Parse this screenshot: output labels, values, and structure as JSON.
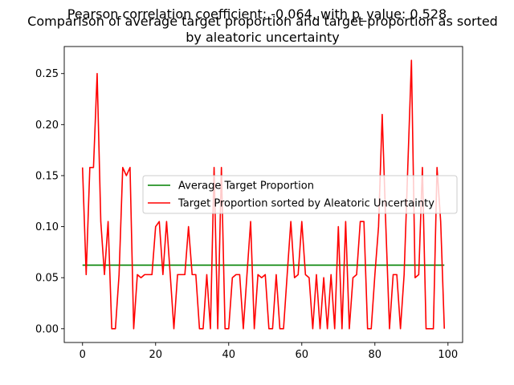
{
  "chart_data": {
    "type": "line",
    "suptitle": "Pearson correlation coefficient: -0.064, with p_value: 0.528",
    "title_line1": "Comparison of average target proportion and target proportion as sorted",
    "title_line2": "by aleatoric uncertainty",
    "xlabel": "",
    "ylabel": "",
    "xlim": [
      -5,
      104
    ],
    "ylim": [
      -0.0135,
      0.2765
    ],
    "xticks": [
      0,
      20,
      40,
      60,
      80,
      100
    ],
    "xtick_labels": [
      "0",
      "20",
      "40",
      "60",
      "80",
      "100"
    ],
    "yticks": [
      0.0,
      0.05,
      0.1,
      0.15,
      0.2,
      0.25
    ],
    "ytick_labels": [
      "0.00",
      "0.05",
      "0.10",
      "0.15",
      "0.20",
      "0.25"
    ],
    "grid": false,
    "legend_position": "center-right",
    "x": [
      0,
      1,
      2,
      3,
      4,
      5,
      6,
      7,
      8,
      9,
      10,
      11,
      12,
      13,
      14,
      15,
      16,
      17,
      18,
      19,
      20,
      21,
      22,
      23,
      24,
      25,
      26,
      27,
      28,
      29,
      30,
      31,
      32,
      33,
      34,
      35,
      36,
      37,
      38,
      39,
      40,
      41,
      42,
      43,
      44,
      45,
      46,
      47,
      48,
      49,
      50,
      51,
      52,
      53,
      54,
      55,
      56,
      57,
      58,
      59,
      60,
      61,
      62,
      63,
      64,
      65,
      66,
      67,
      68,
      69,
      70,
      71,
      72,
      73,
      74,
      75,
      76,
      77,
      78,
      79,
      80,
      81,
      82,
      83,
      84,
      85,
      86,
      87,
      88,
      89,
      90,
      91,
      92,
      93,
      94,
      95,
      96,
      97,
      98,
      99
    ],
    "series": [
      {
        "name": "Average Target Proportion",
        "color": "#008000",
        "values": [
          0.0623,
          0.0623,
          0.0623,
          0.0623,
          0.0623,
          0.0623,
          0.0623,
          0.0623,
          0.0623,
          0.0623,
          0.0623,
          0.0623,
          0.0623,
          0.0623,
          0.0623,
          0.0623,
          0.0623,
          0.0623,
          0.0623,
          0.0623,
          0.0623,
          0.0623,
          0.0623,
          0.0623,
          0.0623,
          0.0623,
          0.0623,
          0.0623,
          0.0623,
          0.0623,
          0.0623,
          0.0623,
          0.0623,
          0.0623,
          0.0623,
          0.0623,
          0.0623,
          0.0623,
          0.0623,
          0.0623,
          0.0623,
          0.0623,
          0.0623,
          0.0623,
          0.0623,
          0.0623,
          0.0623,
          0.0623,
          0.0623,
          0.0623,
          0.0623,
          0.0623,
          0.0623,
          0.0623,
          0.0623,
          0.0623,
          0.0623,
          0.0623,
          0.0623,
          0.0623,
          0.0623,
          0.0623,
          0.0623,
          0.0623,
          0.0623,
          0.0623,
          0.0623,
          0.0623,
          0.0623,
          0.0623,
          0.0623,
          0.0623,
          0.0623,
          0.0623,
          0.0623,
          0.0623,
          0.0623,
          0.0623,
          0.0623,
          0.0623,
          0.0623,
          0.0623,
          0.0623,
          0.0623,
          0.0623,
          0.0623,
          0.0623,
          0.0623,
          0.0623,
          0.0623,
          0.0623,
          0.0623,
          0.0623,
          0.0623,
          0.0623,
          0.0623,
          0.0623,
          0.0623,
          0.0623,
          0.0623
        ]
      },
      {
        "name": "Target Proportion sorted by Aleatoric Uncertainty",
        "color": "#ff0000",
        "values": [
          0.158,
          0.053,
          0.158,
          0.158,
          0.25,
          0.105,
          0.053,
          0.105,
          0.0,
          0.0,
          0.053,
          0.158,
          0.15,
          0.158,
          0.0,
          0.053,
          0.05,
          0.053,
          0.053,
          0.053,
          0.1,
          0.105,
          0.053,
          0.105,
          0.053,
          0.0,
          0.053,
          0.053,
          0.053,
          0.1,
          0.053,
          0.053,
          0.0,
          0.0,
          0.053,
          0.0,
          0.158,
          0.0,
          0.158,
          0.0,
          0.0,
          0.05,
          0.053,
          0.053,
          0.0,
          0.053,
          0.105,
          0.0,
          0.053,
          0.05,
          0.053,
          0.0,
          0.0,
          0.053,
          0.0,
          0.0,
          0.053,
          0.105,
          0.05,
          0.053,
          0.105,
          0.053,
          0.05,
          0.0,
          0.053,
          0.0,
          0.05,
          0.0,
          0.053,
          0.0,
          0.1,
          0.0,
          0.105,
          0.0,
          0.05,
          0.053,
          0.105,
          0.105,
          0.0,
          0.0,
          0.053,
          0.1,
          0.21,
          0.1,
          0.0,
          0.053,
          0.053,
          0.0,
          0.053,
          0.158,
          0.263,
          0.05,
          0.053,
          0.158,
          0.0,
          0.0,
          0.0,
          0.158,
          0.105,
          0.0
        ]
      }
    ]
  }
}
